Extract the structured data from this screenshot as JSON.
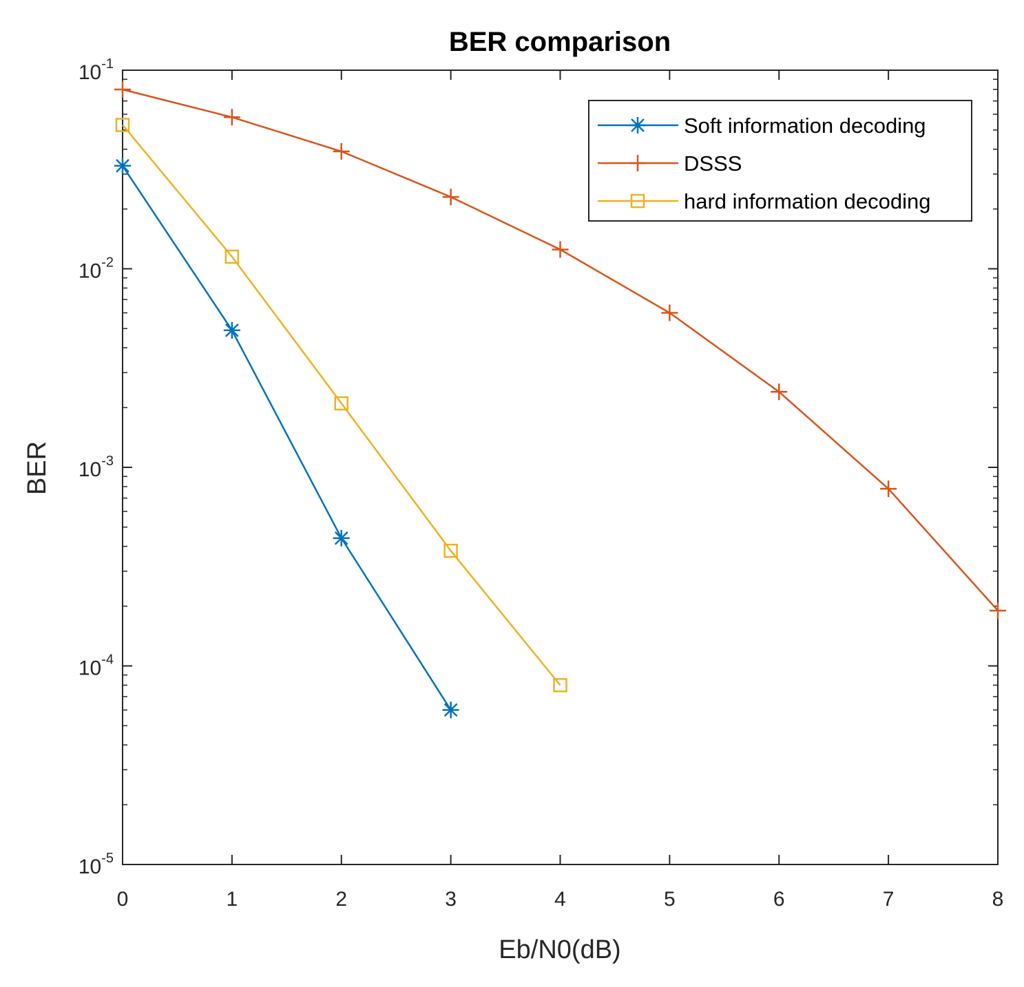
{
  "chart_data": {
    "type": "line",
    "title": "BER comparison",
    "xlabel": "Eb/N0(dB)",
    "ylabel": "BER",
    "xlim": [
      0,
      8
    ],
    "ylim": [
      1e-05,
      0.1
    ],
    "yscale": "log",
    "grid": false,
    "legend_position": "top-right",
    "x_ticks": [
      "0",
      "1",
      "2",
      "3",
      "4",
      "5",
      "6",
      "7",
      "8"
    ],
    "y_ticks": [
      {
        "base": "10",
        "exp": "-1"
      },
      {
        "base": "10",
        "exp": "-2"
      },
      {
        "base": "10",
        "exp": "-3"
      },
      {
        "base": "10",
        "exp": "-4"
      },
      {
        "base": "10",
        "exp": "-5"
      }
    ],
    "series": [
      {
        "name": "Soft information decoding",
        "color": "#0072BD",
        "marker": "asterisk",
        "x": [
          0,
          1,
          2,
          3
        ],
        "y": [
          0.033,
          0.0049,
          0.00044,
          6e-05
        ]
      },
      {
        "name": "DSSS",
        "color": "#D95319",
        "marker": "plus",
        "x": [
          0,
          1,
          2,
          3,
          4,
          5,
          6,
          7,
          8
        ],
        "y": [
          0.08,
          0.058,
          0.039,
          0.023,
          0.0125,
          0.006,
          0.0024,
          0.00078,
          0.00019
        ]
      },
      {
        "name": "hard information decoding",
        "color": "#EDB120",
        "marker": "square",
        "x": [
          0,
          1,
          2,
          3,
          4
        ],
        "y": [
          0.053,
          0.0115,
          0.0021,
          0.00038,
          8e-05
        ]
      }
    ]
  }
}
